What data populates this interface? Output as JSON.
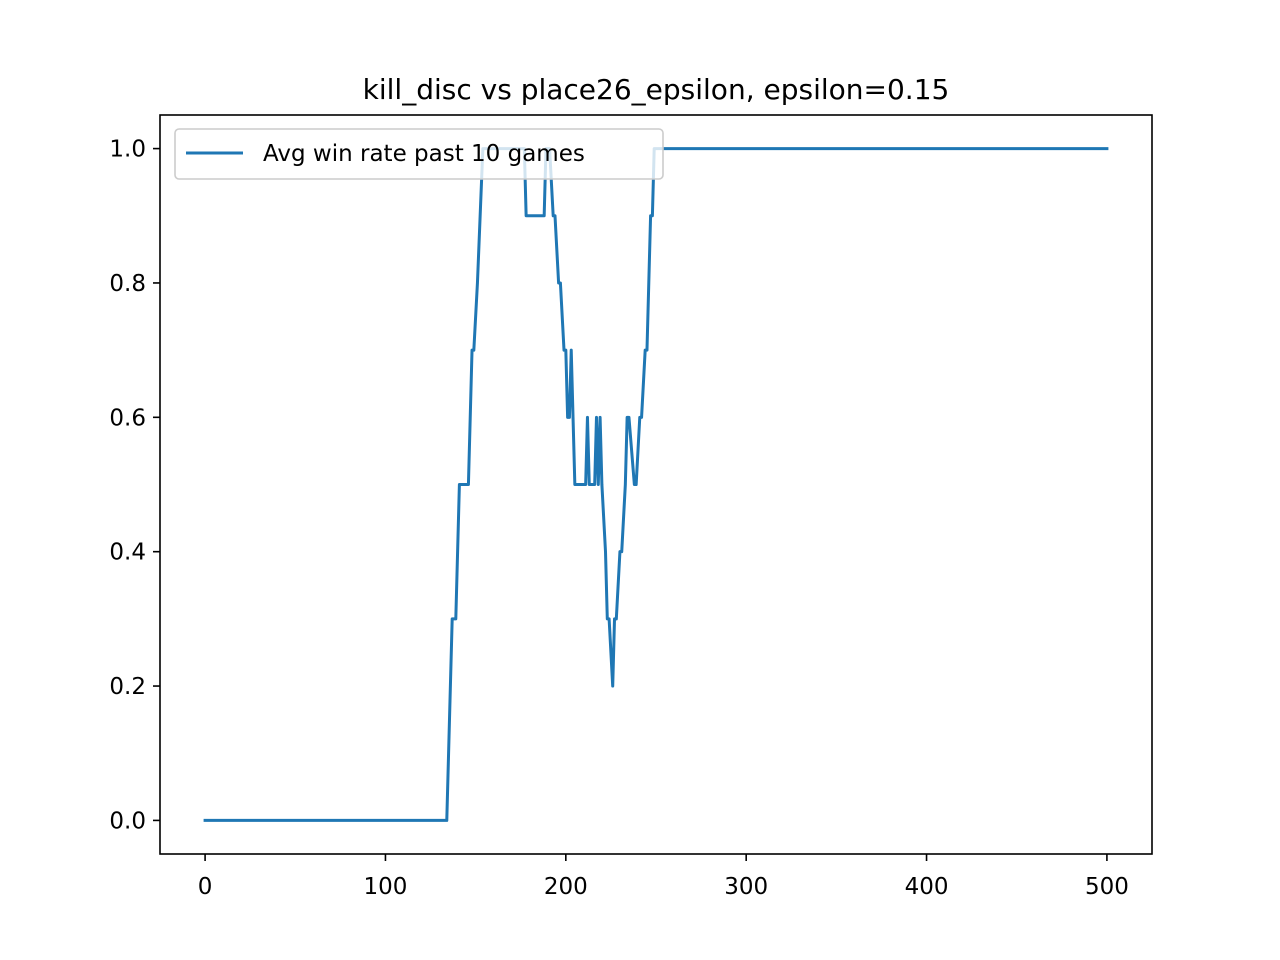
{
  "chart_data": {
    "type": "line",
    "title": "kill_disc vs place26_epsilon, epsilon=0.15",
    "xlabel": "",
    "ylabel": "",
    "xlim": [
      -25,
      525
    ],
    "ylim": [
      -0.05,
      1.05
    ],
    "xticks": [
      0,
      100,
      200,
      300,
      400,
      500
    ],
    "xtick_labels": [
      "0",
      "100",
      "200",
      "300",
      "400",
      "500"
    ],
    "yticks": [
      0.0,
      0.2,
      0.4,
      0.6,
      0.8,
      1.0
    ],
    "ytick_labels": [
      "0.0",
      "0.2",
      "0.4",
      "0.6",
      "0.8",
      "1.0"
    ],
    "grid": false,
    "legend_position": "upper-left",
    "series": [
      {
        "name": "Avg win rate past 10 games",
        "color": "#1f77b4",
        "x": [
          0,
          134,
          137,
          139,
          140,
          141,
          146,
          148,
          149,
          151,
          154,
          158,
          177,
          178,
          188,
          189,
          191,
          193,
          194,
          196,
          197,
          199,
          200,
          201,
          202,
          203,
          204,
          205,
          207,
          211,
          212,
          213,
          216,
          217,
          218,
          219,
          220,
          222,
          223,
          224,
          226,
          227,
          228,
          230,
          231,
          233,
          234,
          235,
          238,
          239,
          241,
          242,
          244,
          245,
          247,
          248,
          249,
          250,
          500
        ],
        "y": [
          0.0,
          0.0,
          0.3,
          0.3,
          0.4,
          0.5,
          0.5,
          0.7,
          0.7,
          0.8,
          1.0,
          1.0,
          1.0,
          0.9,
          0.9,
          1.0,
          1.0,
          0.9,
          0.9,
          0.8,
          0.8,
          0.7,
          0.7,
          0.6,
          0.6,
          0.7,
          0.6,
          0.5,
          0.5,
          0.5,
          0.6,
          0.5,
          0.5,
          0.6,
          0.5,
          0.6,
          0.5,
          0.4,
          0.3,
          0.3,
          0.2,
          0.3,
          0.3,
          0.4,
          0.4,
          0.5,
          0.6,
          0.6,
          0.5,
          0.5,
          0.6,
          0.6,
          0.7,
          0.7,
          0.9,
          0.9,
          1.0,
          1.0,
          1.0
        ]
      }
    ]
  }
}
